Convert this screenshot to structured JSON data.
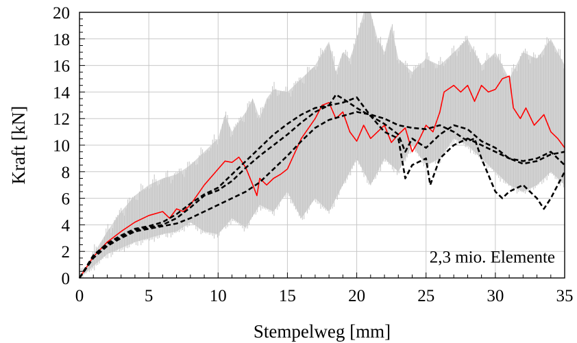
{
  "chart_data": {
    "type": "line",
    "xlabel": "Stempelweg [mm]",
    "ylabel": "Kraft [kN]",
    "xlim": [
      0,
      35
    ],
    "ylim": [
      0,
      20
    ],
    "xticks": [
      0,
      5,
      10,
      15,
      20,
      25,
      30,
      35
    ],
    "yticks": [
      0,
      2,
      4,
      6,
      8,
      10,
      12,
      14,
      16,
      18,
      20
    ],
    "grid": true,
    "annotation": "2,3 mio. Elemente",
    "band": {
      "color": "#bdbdbd",
      "upper": [
        [
          0,
          0
        ],
        [
          1,
          1.8
        ],
        [
          2,
          3.5
        ],
        [
          3,
          5
        ],
        [
          4,
          6.2
        ],
        [
          5,
          7.0
        ],
        [
          6,
          7.5
        ],
        [
          7,
          7.8
        ],
        [
          8,
          8.5
        ],
        [
          9,
          9.5
        ],
        [
          10,
          10.5
        ],
        [
          10.5,
          12.3
        ],
        [
          11,
          11
        ],
        [
          12,
          12.5
        ],
        [
          12.5,
          13.5
        ],
        [
          13,
          12
        ],
        [
          13.5,
          13.5
        ],
        [
          14,
          14.2
        ],
        [
          15,
          14
        ],
        [
          16,
          15
        ],
        [
          17,
          16
        ],
        [
          18,
          17.8
        ],
        [
          18.5,
          15.5
        ],
        [
          19,
          17
        ],
        [
          19.5,
          16.5
        ],
        [
          20,
          18
        ],
        [
          20.5,
          20
        ],
        [
          21,
          20
        ],
        [
          21.5,
          18
        ],
        [
          22,
          17
        ],
        [
          22.5,
          19
        ],
        [
          23,
          16.5
        ],
        [
          24,
          15.5
        ],
        [
          25,
          16.5
        ],
        [
          26,
          16
        ],
        [
          27,
          17
        ],
        [
          28,
          18
        ],
        [
          29,
          16
        ],
        [
          30,
          17
        ],
        [
          31,
          15
        ],
        [
          32,
          17
        ],
        [
          33,
          16.5
        ],
        [
          34,
          18
        ],
        [
          35,
          16
        ]
      ],
      "lower": [
        [
          0,
          0
        ],
        [
          2,
          1.8
        ],
        [
          4,
          2.7
        ],
        [
          6,
          3.3
        ],
        [
          7,
          3.5
        ],
        [
          8,
          4.2
        ],
        [
          9,
          3.5
        ],
        [
          10,
          3.3
        ],
        [
          11,
          4.5
        ],
        [
          12,
          3.8
        ],
        [
          13,
          5.5
        ],
        [
          14,
          5
        ],
        [
          15,
          6.5
        ],
        [
          16,
          4.5
        ],
        [
          17,
          6
        ],
        [
          18,
          5
        ],
        [
          19,
          7
        ],
        [
          20,
          9
        ],
        [
          21,
          7
        ],
        [
          22,
          9
        ],
        [
          23,
          8
        ],
        [
          24,
          10
        ],
        [
          25,
          8.5
        ],
        [
          26,
          9
        ],
        [
          27,
          10.5
        ],
        [
          28,
          10
        ],
        [
          29,
          9
        ],
        [
          30,
          8
        ],
        [
          31,
          7
        ],
        [
          32,
          6.5
        ],
        [
          33,
          7
        ],
        [
          34,
          8
        ],
        [
          35,
          7
        ]
      ]
    },
    "series": [
      {
        "color": "#ff0000",
        "style": "solid",
        "points": [
          [
            0,
            0
          ],
          [
            1,
            1.6
          ],
          [
            2,
            2.7
          ],
          [
            3,
            3.5
          ],
          [
            4,
            4.2
          ],
          [
            5,
            4.7
          ],
          [
            6,
            5.0
          ],
          [
            6.5,
            4.5
          ],
          [
            7,
            5.2
          ],
          [
            7.5,
            5.0
          ],
          [
            8,
            5.5
          ],
          [
            9,
            7.0
          ],
          [
            10,
            8.2
          ],
          [
            10.5,
            8.8
          ],
          [
            11,
            8.7
          ],
          [
            11.5,
            9.1
          ],
          [
            12,
            8.3
          ],
          [
            12.5,
            7.0
          ],
          [
            12.8,
            6.2
          ],
          [
            13,
            7.5
          ],
          [
            13.5,
            7.0
          ],
          [
            14,
            7.5
          ],
          [
            14.5,
            7.8
          ],
          [
            15,
            8.2
          ],
          [
            16,
            10.5
          ],
          [
            17,
            12.0
          ],
          [
            17.5,
            13.0
          ],
          [
            18,
            13.2
          ],
          [
            18.5,
            12.0
          ],
          [
            19,
            12.5
          ],
          [
            19.5,
            11.0
          ],
          [
            20,
            10.3
          ],
          [
            20.5,
            11.5
          ],
          [
            21,
            10.5
          ],
          [
            22,
            11.5
          ],
          [
            22.5,
            10.2
          ],
          [
            23,
            10.8
          ],
          [
            23.5,
            11.3
          ],
          [
            24,
            9.5
          ],
          [
            24.5,
            10.4
          ],
          [
            25,
            11.5
          ],
          [
            25.5,
            11.0
          ],
          [
            26,
            12.5
          ],
          [
            26.3,
            14.0
          ],
          [
            27,
            14.5
          ],
          [
            27.5,
            14.0
          ],
          [
            28,
            14.5
          ],
          [
            28.5,
            13.3
          ],
          [
            29,
            14.5
          ],
          [
            29.5,
            14.0
          ],
          [
            30,
            14.2
          ],
          [
            30.5,
            15.0
          ],
          [
            31,
            15.2
          ],
          [
            31.3,
            12.8
          ],
          [
            31.8,
            12.0
          ],
          [
            32.2,
            12.8
          ],
          [
            32.8,
            11.5
          ],
          [
            33.5,
            12.3
          ],
          [
            34,
            11.0
          ],
          [
            34.5,
            10.5
          ],
          [
            35,
            9.8
          ]
        ]
      },
      {
        "color": "#000000",
        "style": "dashed",
        "points": [
          [
            0,
            0
          ],
          [
            1,
            1.6
          ],
          [
            2,
            2.5
          ],
          [
            3,
            3.1
          ],
          [
            4,
            3.6
          ],
          [
            5,
            3.8
          ],
          [
            6,
            4.0
          ],
          [
            7,
            4.5
          ],
          [
            8,
            5.3
          ],
          [
            9,
            6.2
          ],
          [
            10,
            6.6
          ],
          [
            11,
            7.3
          ],
          [
            12,
            8.3
          ],
          [
            13,
            9.2
          ],
          [
            14,
            10.0
          ],
          [
            15,
            10.8
          ],
          [
            16,
            11.7
          ],
          [
            17,
            12.5
          ],
          [
            18,
            13.0
          ],
          [
            18.5,
            13.8
          ],
          [
            19,
            13.5
          ],
          [
            20,
            12.8
          ],
          [
            21,
            12.2
          ],
          [
            22,
            11.6
          ],
          [
            23,
            10.8
          ],
          [
            23.5,
            9.5
          ],
          [
            24,
            10.5
          ],
          [
            25,
            9.8
          ],
          [
            26,
            10.8
          ],
          [
            27,
            11.5
          ],
          [
            28,
            11.2
          ],
          [
            29,
            10.3
          ],
          [
            30,
            9.8
          ],
          [
            31,
            9.0
          ],
          [
            32,
            8.6
          ],
          [
            33,
            8.8
          ],
          [
            34,
            9.3
          ],
          [
            35,
            9.5
          ]
        ]
      },
      {
        "color": "#000000",
        "style": "dashed",
        "points": [
          [
            0,
            0
          ],
          [
            1,
            1.5
          ],
          [
            2,
            2.4
          ],
          [
            3,
            3.0
          ],
          [
            4,
            3.5
          ],
          [
            5,
            3.7
          ],
          [
            6,
            3.9
          ],
          [
            7,
            4.1
          ],
          [
            8,
            4.5
          ],
          [
            9,
            5.0
          ],
          [
            10,
            5.5
          ],
          [
            11,
            6.0
          ],
          [
            12,
            6.5
          ],
          [
            13,
            7.2
          ],
          [
            14,
            8.2
          ],
          [
            15,
            9.2
          ],
          [
            16,
            10.3
          ],
          [
            17,
            11.3
          ],
          [
            18,
            11.9
          ],
          [
            19,
            12.2
          ],
          [
            20,
            12.5
          ],
          [
            21,
            12.3
          ],
          [
            22,
            12.0
          ],
          [
            23,
            11.5
          ],
          [
            24,
            11.3
          ],
          [
            25,
            11.2
          ],
          [
            26,
            11.5
          ],
          [
            27,
            11.0
          ],
          [
            28,
            10.3
          ],
          [
            28.5,
            10.5
          ],
          [
            29,
            9.0
          ],
          [
            30,
            6.5
          ],
          [
            30.5,
            6.0
          ],
          [
            31,
            6.5
          ],
          [
            32,
            7.0
          ],
          [
            33,
            6.0
          ],
          [
            33.5,
            5.2
          ],
          [
            34,
            6.0
          ],
          [
            35,
            8.0
          ]
        ]
      },
      {
        "color": "#000000",
        "style": "dashed",
        "points": [
          [
            0,
            0
          ],
          [
            1,
            1.7
          ],
          [
            2,
            2.6
          ],
          [
            3,
            3.2
          ],
          [
            4,
            3.7
          ],
          [
            5,
            3.9
          ],
          [
            6,
            4.2
          ],
          [
            7,
            4.8
          ],
          [
            8,
            5.6
          ],
          [
            9,
            6.3
          ],
          [
            10,
            6.8
          ],
          [
            11,
            7.8
          ],
          [
            12,
            8.8
          ],
          [
            13,
            9.8
          ],
          [
            14,
            10.8
          ],
          [
            15,
            11.6
          ],
          [
            16,
            12.3
          ],
          [
            17,
            12.8
          ],
          [
            18,
            13.0
          ],
          [
            19,
            13.2
          ],
          [
            20,
            13.6
          ],
          [
            21,
            12.2
          ],
          [
            22,
            11.0
          ],
          [
            23,
            10.5
          ],
          [
            23.5,
            7.5
          ],
          [
            24,
            8.5
          ],
          [
            25,
            9.0
          ],
          [
            25.3,
            7.0
          ],
          [
            26,
            9.0
          ],
          [
            27,
            10.0
          ],
          [
            28,
            10.5
          ],
          [
            29,
            10.0
          ],
          [
            30,
            9.5
          ],
          [
            31,
            9.0
          ],
          [
            32,
            8.8
          ],
          [
            33,
            9.0
          ],
          [
            34,
            9.5
          ],
          [
            35,
            8.5
          ]
        ]
      }
    ]
  }
}
